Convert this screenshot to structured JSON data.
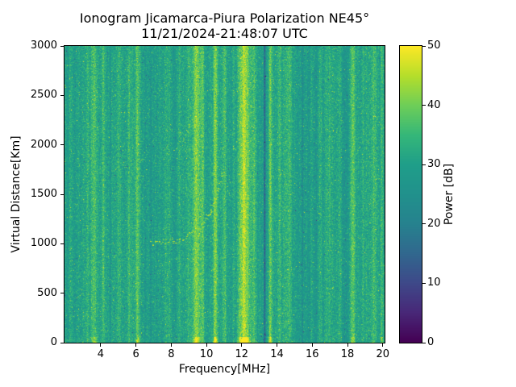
{
  "chart_data": {
    "type": "heatmap",
    "title": "Ionogram Jicamarca-Piura Polarization NE45°",
    "subtitle": "11/21/2024-21:48:07 UTC",
    "xlabel": "Frequency[MHz]",
    "ylabel": "Virtual Distance[Km]",
    "colorbar_label": "Power [dB]",
    "xlim": [
      1.95,
      20.1
    ],
    "ylim": [
      0,
      3000
    ],
    "clim": [
      0,
      50
    ],
    "x_ticks": [
      4,
      6,
      8,
      10,
      12,
      14,
      16,
      18,
      20
    ],
    "y_ticks": [
      0,
      500,
      1000,
      1500,
      2000,
      2500,
      3000
    ],
    "colorbar_ticks": [
      0,
      10,
      20,
      30,
      40,
      50
    ],
    "colormap": "viridis",
    "colormap_stops": [
      "#440154",
      "#482878",
      "#3e4989",
      "#31688e",
      "#26828e",
      "#21918c",
      "#1f9e89",
      "#35b779",
      "#6ece58",
      "#b5de2b",
      "#fde725"
    ],
    "grid": false,
    "background_power_db": {
      "mean": 30,
      "noise_sigma": 3.0
    },
    "rfi_bands": [
      {
        "freq_mhz": 2.3,
        "sigma_mhz": 0.06,
        "power_boost_db": 4,
        "ground_flash": false
      },
      {
        "freq_mhz": 2.75,
        "sigma_mhz": 0.05,
        "power_boost_db": 3,
        "ground_flash": false
      },
      {
        "freq_mhz": 3.25,
        "sigma_mhz": 0.05,
        "power_boost_db": 3,
        "ground_flash": false
      },
      {
        "freq_mhz": 3.65,
        "sigma_mhz": 0.1,
        "power_boost_db": 7,
        "ground_flash": true
      },
      {
        "freq_mhz": 4.15,
        "sigma_mhz": 0.06,
        "power_boost_db": 5,
        "ground_flash": false
      },
      {
        "freq_mhz": 4.55,
        "sigma_mhz": 0.03,
        "power_boost_db": -5,
        "ground_flash": false
      },
      {
        "freq_mhz": 5.05,
        "sigma_mhz": 0.05,
        "power_boost_db": 2.5,
        "ground_flash": false
      },
      {
        "freq_mhz": 5.6,
        "sigma_mhz": 0.04,
        "power_boost_db": 3,
        "ground_flash": false
      },
      {
        "freq_mhz": 6.1,
        "sigma_mhz": 0.09,
        "power_boost_db": 7,
        "ground_flash": true
      },
      {
        "freq_mhz": 6.85,
        "sigma_mhz": 0.03,
        "power_boost_db": -4,
        "ground_flash": false
      },
      {
        "freq_mhz": 7.35,
        "sigma_mhz": 0.05,
        "power_boost_db": 2.5,
        "ground_flash": false
      },
      {
        "freq_mhz": 7.9,
        "sigma_mhz": 0.04,
        "power_boost_db": 2,
        "ground_flash": false
      },
      {
        "freq_mhz": 8.45,
        "sigma_mhz": 0.08,
        "power_boost_db": 4,
        "ground_flash": false
      },
      {
        "freq_mhz": 9.0,
        "sigma_mhz": 0.05,
        "power_boost_db": 3,
        "ground_flash": false
      },
      {
        "freq_mhz": 9.45,
        "sigma_mhz": 0.15,
        "power_boost_db": 10,
        "ground_flash": true
      },
      {
        "freq_mhz": 9.8,
        "sigma_mhz": 0.07,
        "power_boost_db": 8,
        "ground_flash": false
      },
      {
        "freq_mhz": 10.5,
        "sigma_mhz": 0.08,
        "power_boost_db": 12,
        "ground_flash": true
      },
      {
        "freq_mhz": 11.05,
        "sigma_mhz": 0.06,
        "power_boost_db": 5,
        "ground_flash": false
      },
      {
        "freq_mhz": 11.55,
        "sigma_mhz": 0.05,
        "power_boost_db": 4,
        "ground_flash": false
      },
      {
        "freq_mhz": 12.15,
        "sigma_mhz": 0.22,
        "power_boost_db": 16,
        "ground_flash": true
      },
      {
        "freq_mhz": 12.7,
        "sigma_mhz": 0.05,
        "power_boost_db": 4,
        "ground_flash": false
      },
      {
        "freq_mhz": 13.3,
        "sigma_mhz": 0.04,
        "power_boost_db": -16,
        "ground_flash": false
      },
      {
        "freq_mhz": 13.62,
        "sigma_mhz": 0.07,
        "power_boost_db": 9,
        "ground_flash": true
      },
      {
        "freq_mhz": 14.15,
        "sigma_mhz": 0.05,
        "power_boost_db": 3,
        "ground_flash": false
      },
      {
        "freq_mhz": 14.7,
        "sigma_mhz": 0.08,
        "power_boost_db": 5,
        "ground_flash": false
      },
      {
        "freq_mhz": 15.45,
        "sigma_mhz": 0.03,
        "power_boost_db": -6,
        "ground_flash": false
      },
      {
        "freq_mhz": 15.95,
        "sigma_mhz": 0.05,
        "power_boost_db": 3,
        "ground_flash": false
      },
      {
        "freq_mhz": 16.4,
        "sigma_mhz": 0.08,
        "power_boost_db": 5,
        "ground_flash": false
      },
      {
        "freq_mhz": 17.0,
        "sigma_mhz": 0.04,
        "power_boost_db": 3,
        "ground_flash": false
      },
      {
        "freq_mhz": 17.55,
        "sigma_mhz": 0.08,
        "power_boost_db": 5,
        "ground_flash": false
      },
      {
        "freq_mhz": 18.3,
        "sigma_mhz": 0.09,
        "power_boost_db": 6,
        "ground_flash": true
      },
      {
        "freq_mhz": 18.9,
        "sigma_mhz": 0.04,
        "power_boost_db": 3,
        "ground_flash": false
      },
      {
        "freq_mhz": 19.5,
        "sigma_mhz": 0.1,
        "power_boost_db": 5,
        "ground_flash": false
      },
      {
        "freq_mhz": 19.95,
        "sigma_mhz": 0.06,
        "power_boost_db": 8,
        "ground_flash": true
      }
    ],
    "echo_trace": {
      "description": "ionospheric echo trace",
      "points_mhz_km": [
        [
          6.8,
          1000
        ],
        [
          7.8,
          1015
        ],
        [
          8.6,
          1050
        ],
        [
          9.2,
          1105
        ],
        [
          9.7,
          1180
        ],
        [
          10.1,
          1280
        ],
        [
          10.45,
          1420
        ],
        [
          10.75,
          1590
        ],
        [
          10.95,
          1750
        ]
      ],
      "second_hop_points_mhz_km": [
        [
          8.15,
          1900
        ],
        [
          8.55,
          2030
        ],
        [
          8.95,
          2160
        ],
        [
          9.35,
          2300
        ]
      ],
      "power_db": 43
    }
  }
}
